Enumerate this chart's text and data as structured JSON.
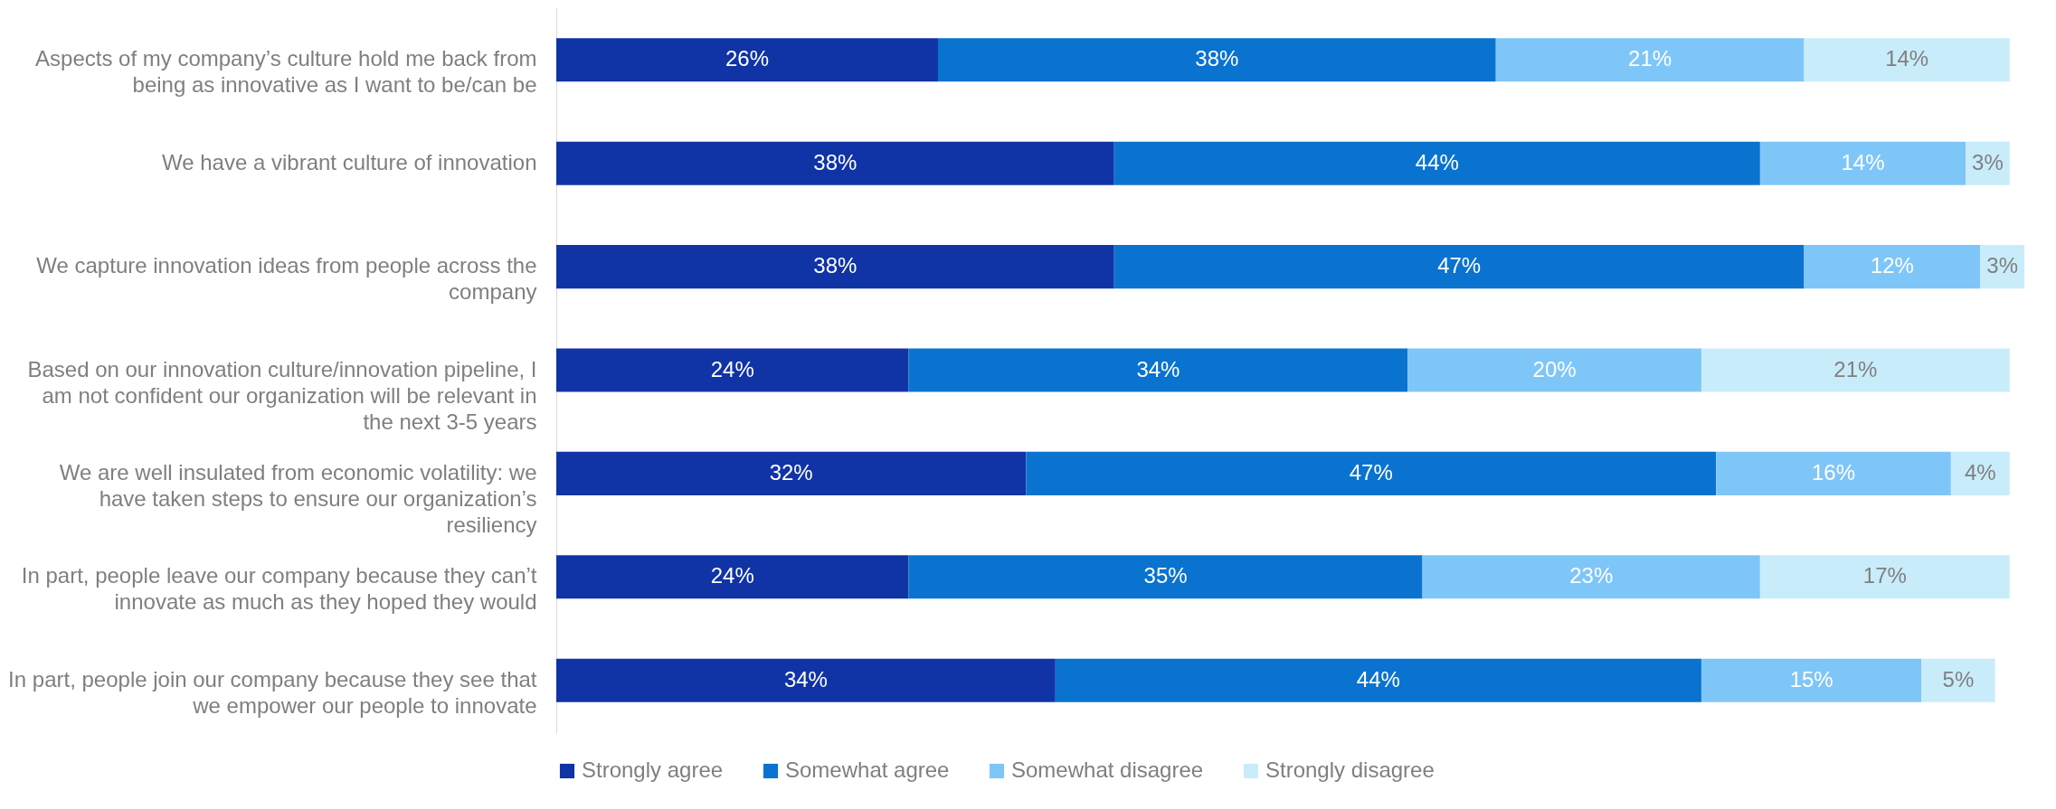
{
  "chart_data": {
    "type": "bar",
    "orientation": "horizontal",
    "stacked": true,
    "legend": "bottom",
    "tick_labels": "y",
    "categories": [
      "Aspects of my company’s culture hold me back from being as innovative as I want to be/can be",
      "We have a vibrant culture of innovation",
      "We capture innovation ideas from people across the company",
      "Based on our innovation culture/innovation pipeline, I am not confident our organization will be relevant in the next 3-5 years",
      "We are well insulated from economic volatility: we have taken steps to ensure our organization’s resiliency",
      "In part, people leave our company because they can’t innovate as much as they hoped they would",
      "In part, people join our company because they see that we empower our people to innovate"
    ],
    "series": [
      {
        "name": "Strongly agree",
        "color": "#1034a6",
        "values": [
          26,
          38,
          38,
          24,
          32,
          24,
          34
        ],
        "value_labels": [
          "26%",
          "38%",
          "38%",
          "24%",
          "32%",
          "24%",
          "34%"
        ]
      },
      {
        "name": "Somewhat agree",
        "color": "#0a73cf",
        "values": [
          38,
          44,
          47,
          34,
          47,
          35,
          44
        ],
        "value_labels": [
          "38%",
          "44%",
          "47%",
          "34%",
          "47%",
          "35%",
          "44%"
        ]
      },
      {
        "name": "Somewhat disagree",
        "color": "#7fc6f8",
        "values": [
          21,
          14,
          12,
          20,
          16,
          23,
          15
        ],
        "value_labels": [
          "21%",
          "14%",
          "12%",
          "20%",
          "16%",
          "23%",
          "15%"
        ]
      },
      {
        "name": "Strongly disagree",
        "color": "#c9ecfb",
        "values": [
          14,
          3,
          3,
          21,
          4,
          17,
          5
        ],
        "value_labels": [
          "14%",
          "3%",
          "3%",
          "21%",
          "4%",
          "17%",
          "5%"
        ]
      }
    ]
  }
}
